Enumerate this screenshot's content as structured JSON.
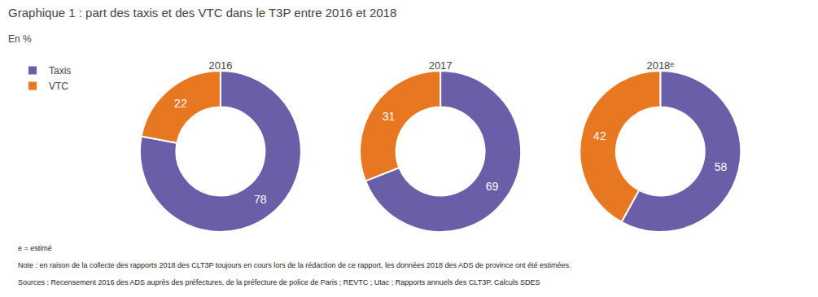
{
  "chart_data": {
    "type": "pie",
    "title": "Graphique 1 : part des taxis et des VTC dans le T3P entre 2016 et 2018",
    "subtitle": "En %",
    "categories": [
      "2016",
      "2017",
      "2018ᵉ"
    ],
    "series": [
      {
        "name": "Taxis",
        "color": "#6B5EA8",
        "values": [
          78,
          69,
          58
        ]
      },
      {
        "name": "VTC",
        "color": "#E87722",
        "values": [
          22,
          31,
          42
        ]
      }
    ],
    "data_labels": true,
    "legend": "upper left",
    "annotations": [
      "e = estimé",
      "Note : en raison de la collecte des rapports 2018 des CLT3P toujours en cours lors de la rédaction de ce rapport, les données 2018 des ADS de province ont été estimées.",
      "Sources : Recensement 2016 des ADS auprès des préfectures, de la préfecture de police de Paris ; REVTC ; Utac ; Rapports annuels des CLT3P. Calculs SDES"
    ]
  }
}
